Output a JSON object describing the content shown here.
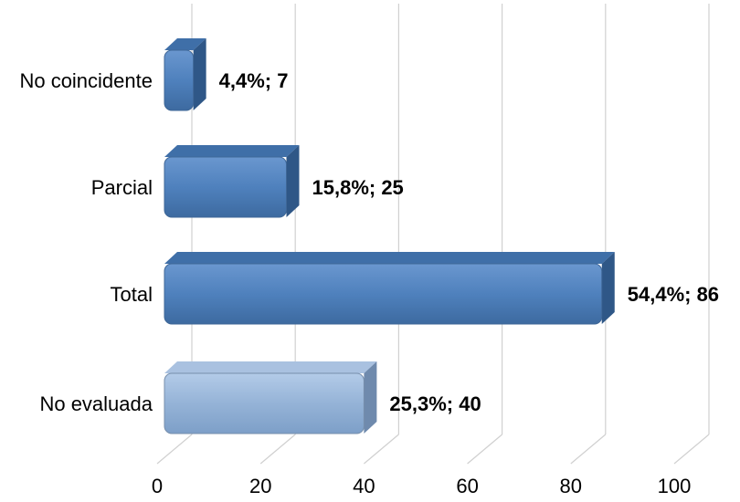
{
  "chart_data": {
    "type": "bar",
    "orientation": "horizontal",
    "style": "3d",
    "categories": [
      "No coincidente",
      "Parcial",
      "Total",
      "No evaluada"
    ],
    "values": [
      7,
      25,
      86,
      40
    ],
    "data_labels": [
      "4,4%;  7",
      "15,8%;  25",
      "54,4%;  86",
      "25,3%;  40"
    ],
    "percentages": [
      4.4,
      15.8,
      54.4,
      25.3
    ],
    "bar_colors": [
      "#4f81bd",
      "#4f81bd",
      "#4f81bd",
      "#95b3d7"
    ],
    "xticks": [
      "0",
      "20",
      "40",
      "60",
      "80",
      "100"
    ],
    "xlim": [
      0,
      100
    ],
    "grid": true,
    "legend": "none",
    "title": "",
    "xlabel": "",
    "ylabel": ""
  }
}
